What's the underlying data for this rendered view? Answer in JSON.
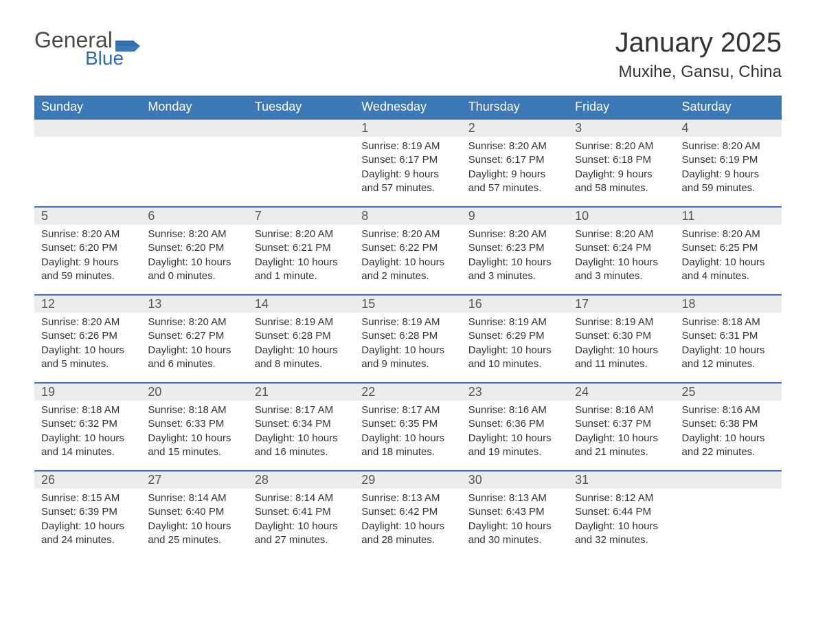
{
  "branding": {
    "logo_text_1": "General",
    "logo_text_2": "Blue",
    "logo_text_color": "#4a4a4a",
    "logo_accent_color": "#2f6fb0"
  },
  "header": {
    "title": "January 2025",
    "location": "Muxihe, Gansu, China"
  },
  "colors": {
    "header_bg": "#3b78b5",
    "header_text": "#ffffff",
    "daynum_bg": "#ececec",
    "row_border": "#3b78b5",
    "body_text": "#333333",
    "page_bg": "#ffffff"
  },
  "typography": {
    "title_fontsize": 40,
    "location_fontsize": 24,
    "weekday_fontsize": 18,
    "daynum_fontsize": 18,
    "body_fontsize": 15
  },
  "calendar": {
    "weekdays": [
      "Sunday",
      "Monday",
      "Tuesday",
      "Wednesday",
      "Thursday",
      "Friday",
      "Saturday"
    ],
    "weeks": [
      [
        {
          "day": "",
          "sunrise": "",
          "sunset": "",
          "daylight": ""
        },
        {
          "day": "",
          "sunrise": "",
          "sunset": "",
          "daylight": ""
        },
        {
          "day": "",
          "sunrise": "",
          "sunset": "",
          "daylight": ""
        },
        {
          "day": "1",
          "sunrise": "Sunrise: 8:19 AM",
          "sunset": "Sunset: 6:17 PM",
          "daylight": "Daylight: 9 hours and 57 minutes."
        },
        {
          "day": "2",
          "sunrise": "Sunrise: 8:20 AM",
          "sunset": "Sunset: 6:17 PM",
          "daylight": "Daylight: 9 hours and 57 minutes."
        },
        {
          "day": "3",
          "sunrise": "Sunrise: 8:20 AM",
          "sunset": "Sunset: 6:18 PM",
          "daylight": "Daylight: 9 hours and 58 minutes."
        },
        {
          "day": "4",
          "sunrise": "Sunrise: 8:20 AM",
          "sunset": "Sunset: 6:19 PM",
          "daylight": "Daylight: 9 hours and 59 minutes."
        }
      ],
      [
        {
          "day": "5",
          "sunrise": "Sunrise: 8:20 AM",
          "sunset": "Sunset: 6:20 PM",
          "daylight": "Daylight: 9 hours and 59 minutes."
        },
        {
          "day": "6",
          "sunrise": "Sunrise: 8:20 AM",
          "sunset": "Sunset: 6:20 PM",
          "daylight": "Daylight: 10 hours and 0 minutes."
        },
        {
          "day": "7",
          "sunrise": "Sunrise: 8:20 AM",
          "sunset": "Sunset: 6:21 PM",
          "daylight": "Daylight: 10 hours and 1 minute."
        },
        {
          "day": "8",
          "sunrise": "Sunrise: 8:20 AM",
          "sunset": "Sunset: 6:22 PM",
          "daylight": "Daylight: 10 hours and 2 minutes."
        },
        {
          "day": "9",
          "sunrise": "Sunrise: 8:20 AM",
          "sunset": "Sunset: 6:23 PM",
          "daylight": "Daylight: 10 hours and 3 minutes."
        },
        {
          "day": "10",
          "sunrise": "Sunrise: 8:20 AM",
          "sunset": "Sunset: 6:24 PM",
          "daylight": "Daylight: 10 hours and 3 minutes."
        },
        {
          "day": "11",
          "sunrise": "Sunrise: 8:20 AM",
          "sunset": "Sunset: 6:25 PM",
          "daylight": "Daylight: 10 hours and 4 minutes."
        }
      ],
      [
        {
          "day": "12",
          "sunrise": "Sunrise: 8:20 AM",
          "sunset": "Sunset: 6:26 PM",
          "daylight": "Daylight: 10 hours and 5 minutes."
        },
        {
          "day": "13",
          "sunrise": "Sunrise: 8:20 AM",
          "sunset": "Sunset: 6:27 PM",
          "daylight": "Daylight: 10 hours and 6 minutes."
        },
        {
          "day": "14",
          "sunrise": "Sunrise: 8:19 AM",
          "sunset": "Sunset: 6:28 PM",
          "daylight": "Daylight: 10 hours and 8 minutes."
        },
        {
          "day": "15",
          "sunrise": "Sunrise: 8:19 AM",
          "sunset": "Sunset: 6:28 PM",
          "daylight": "Daylight: 10 hours and 9 minutes."
        },
        {
          "day": "16",
          "sunrise": "Sunrise: 8:19 AM",
          "sunset": "Sunset: 6:29 PM",
          "daylight": "Daylight: 10 hours and 10 minutes."
        },
        {
          "day": "17",
          "sunrise": "Sunrise: 8:19 AM",
          "sunset": "Sunset: 6:30 PM",
          "daylight": "Daylight: 10 hours and 11 minutes."
        },
        {
          "day": "18",
          "sunrise": "Sunrise: 8:18 AM",
          "sunset": "Sunset: 6:31 PM",
          "daylight": "Daylight: 10 hours and 12 minutes."
        }
      ],
      [
        {
          "day": "19",
          "sunrise": "Sunrise: 8:18 AM",
          "sunset": "Sunset: 6:32 PM",
          "daylight": "Daylight: 10 hours and 14 minutes."
        },
        {
          "day": "20",
          "sunrise": "Sunrise: 8:18 AM",
          "sunset": "Sunset: 6:33 PM",
          "daylight": "Daylight: 10 hours and 15 minutes."
        },
        {
          "day": "21",
          "sunrise": "Sunrise: 8:17 AM",
          "sunset": "Sunset: 6:34 PM",
          "daylight": "Daylight: 10 hours and 16 minutes."
        },
        {
          "day": "22",
          "sunrise": "Sunrise: 8:17 AM",
          "sunset": "Sunset: 6:35 PM",
          "daylight": "Daylight: 10 hours and 18 minutes."
        },
        {
          "day": "23",
          "sunrise": "Sunrise: 8:16 AM",
          "sunset": "Sunset: 6:36 PM",
          "daylight": "Daylight: 10 hours and 19 minutes."
        },
        {
          "day": "24",
          "sunrise": "Sunrise: 8:16 AM",
          "sunset": "Sunset: 6:37 PM",
          "daylight": "Daylight: 10 hours and 21 minutes."
        },
        {
          "day": "25",
          "sunrise": "Sunrise: 8:16 AM",
          "sunset": "Sunset: 6:38 PM",
          "daylight": "Daylight: 10 hours and 22 minutes."
        }
      ],
      [
        {
          "day": "26",
          "sunrise": "Sunrise: 8:15 AM",
          "sunset": "Sunset: 6:39 PM",
          "daylight": "Daylight: 10 hours and 24 minutes."
        },
        {
          "day": "27",
          "sunrise": "Sunrise: 8:14 AM",
          "sunset": "Sunset: 6:40 PM",
          "daylight": "Daylight: 10 hours and 25 minutes."
        },
        {
          "day": "28",
          "sunrise": "Sunrise: 8:14 AM",
          "sunset": "Sunset: 6:41 PM",
          "daylight": "Daylight: 10 hours and 27 minutes."
        },
        {
          "day": "29",
          "sunrise": "Sunrise: 8:13 AM",
          "sunset": "Sunset: 6:42 PM",
          "daylight": "Daylight: 10 hours and 28 minutes."
        },
        {
          "day": "30",
          "sunrise": "Sunrise: 8:13 AM",
          "sunset": "Sunset: 6:43 PM",
          "daylight": "Daylight: 10 hours and 30 minutes."
        },
        {
          "day": "31",
          "sunrise": "Sunrise: 8:12 AM",
          "sunset": "Sunset: 6:44 PM",
          "daylight": "Daylight: 10 hours and 32 minutes."
        },
        {
          "day": "",
          "sunrise": "",
          "sunset": "",
          "daylight": ""
        }
      ]
    ]
  }
}
